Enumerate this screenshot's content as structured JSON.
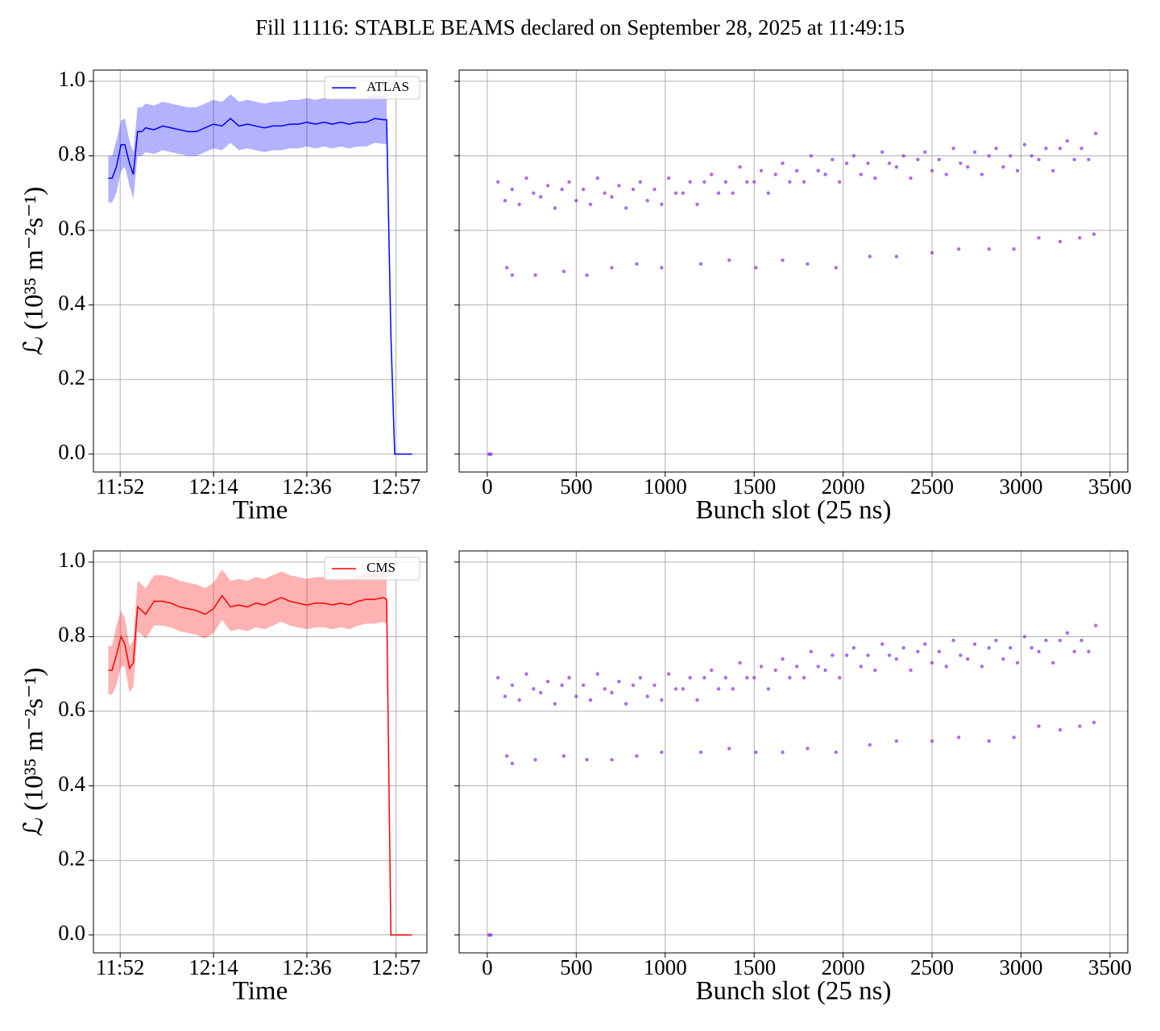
{
  "title": "Fill 11116: STABLE BEAMS declared on September 28, 2025 at 11:49:15",
  "chart_data": [
    {
      "type": "line",
      "xlabel": "Time",
      "ylabel": "ℒ (10³⁵ m⁻²s⁻¹)",
      "legend": "upper right",
      "grid": true,
      "xlim": [
        705.7,
        784.3
      ],
      "ylim": [
        -0.048,
        1.03
      ],
      "xticks": [
        {
          "value": 712,
          "label": "11:52"
        },
        {
          "value": 734,
          "label": "12:14"
        },
        {
          "value": 756,
          "label": "12:36"
        },
        {
          "value": 777,
          "label": "12:57"
        }
      ],
      "yticks": [
        {
          "value": 0,
          "label": "0.0"
        },
        0.2,
        0.4,
        0.6,
        0.8,
        {
          "value": 1,
          "label": "1.0"
        }
      ],
      "x": [
        709.2,
        710.1,
        711.1,
        712.2,
        713.1,
        714.2,
        715.1,
        716.1,
        717.1,
        718,
        720,
        722,
        724,
        726,
        728,
        730,
        732,
        734,
        736,
        738,
        740,
        742,
        744,
        746,
        748,
        750,
        752,
        754,
        756,
        758,
        760,
        762,
        764,
        766,
        768,
        770,
        772,
        774,
        774.8,
        775.8,
        776.7,
        778.7,
        780.8
      ],
      "series": [
        {
          "name": "ATLAS",
          "color": "#0000ff",
          "values": [
            0.74,
            0.74,
            0.77,
            0.83,
            0.83,
            0.78,
            0.75,
            0.865,
            0.865,
            0.875,
            0.87,
            0.88,
            0.875,
            0.87,
            0.865,
            0.865,
            0.875,
            0.885,
            0.88,
            0.9,
            0.88,
            0.885,
            0.88,
            0.875,
            0.88,
            0.88,
            0.885,
            0.885,
            0.89,
            0.885,
            0.89,
            0.885,
            0.89,
            0.885,
            0.89,
            0.89,
            0.9,
            0.897,
            0.897,
            0.32,
            0,
            0,
            0
          ],
          "band_lower": [
            0.675,
            0.675,
            0.7,
            0.76,
            0.77,
            0.72,
            0.685,
            0.8,
            0.8,
            0.81,
            0.805,
            0.815,
            0.81,
            0.805,
            0.8,
            0.8,
            0.81,
            0.82,
            0.815,
            0.835,
            0.815,
            0.82,
            0.815,
            0.81,
            0.815,
            0.815,
            0.82,
            0.82,
            0.825,
            0.82,
            0.825,
            0.82,
            0.825,
            0.82,
            0.825,
            0.825,
            0.835,
            0.832,
            0.832,
            null,
            null,
            null,
            null
          ],
          "band_upper": [
            0.8,
            0.8,
            0.84,
            0.895,
            0.9,
            0.84,
            0.81,
            0.93,
            0.93,
            0.94,
            0.935,
            0.945,
            0.94,
            0.935,
            0.93,
            0.93,
            0.94,
            0.95,
            0.945,
            0.965,
            0.945,
            0.95,
            0.945,
            0.94,
            0.945,
            0.945,
            0.95,
            0.95,
            0.955,
            0.95,
            0.955,
            0.95,
            0.955,
            0.95,
            0.955,
            0.955,
            0.965,
            0.962,
            0.962,
            null,
            null,
            null,
            null
          ]
        }
      ]
    },
    {
      "type": "scatter",
      "xlabel": "Bunch slot (25 ns)",
      "color": "#8a2be2",
      "grid": true,
      "show_ytick_labels": false,
      "xlim": [
        -158,
        3600
      ],
      "ylim": [
        -0.048,
        1.03
      ],
      "xticks": [
        0,
        500,
        1000,
        1500,
        2000,
        2500,
        3000,
        3500
      ],
      "yticks": [
        0,
        0.2,
        0.4,
        0.6,
        0.8,
        1
      ],
      "x": [
        60,
        100,
        140,
        180,
        220,
        260,
        300,
        340,
        380,
        420,
        460,
        500,
        540,
        580,
        620,
        660,
        700,
        740,
        780,
        820,
        860,
        900,
        940,
        980,
        1020,
        1060,
        1100,
        1140,
        1180,
        1220,
        1260,
        1300,
        1340,
        1380,
        1420,
        1460,
        1500,
        1540,
        1580,
        1620,
        1660,
        1700,
        1740,
        1780,
        1820,
        1860,
        1900,
        1940,
        1980,
        2020,
        2060,
        2100,
        2140,
        2180,
        2220,
        2260,
        2300,
        2340,
        2380,
        2420,
        2460,
        2500,
        2540,
        2580,
        2620,
        2660,
        2700,
        2740,
        2780,
        2820,
        2860,
        2900,
        2940,
        2980,
        3020,
        3060,
        3100,
        3140,
        3180,
        3220,
        3260,
        3300,
        3340,
        3380,
        3420,
        110,
        140,
        270,
        430,
        560,
        700,
        840,
        980,
        1200,
        1360,
        1510,
        1660,
        1800,
        1960,
        2150,
        2300,
        2500,
        2650,
        2820,
        2960,
        3100,
        3220,
        3330,
        3410,
        10,
        20
      ],
      "y": [
        0.73,
        0.68,
        0.71,
        0.67,
        0.74,
        0.7,
        0.69,
        0.72,
        0.66,
        0.71,
        0.73,
        0.68,
        0.71,
        0.67,
        0.74,
        0.7,
        0.69,
        0.72,
        0.66,
        0.71,
        0.73,
        0.68,
        0.71,
        0.67,
        0.74,
        0.7,
        0.7,
        0.73,
        0.67,
        0.73,
        0.75,
        0.7,
        0.73,
        0.7,
        0.77,
        0.73,
        0.73,
        0.76,
        0.7,
        0.75,
        0.78,
        0.73,
        0.76,
        0.73,
        0.8,
        0.76,
        0.75,
        0.79,
        0.73,
        0.78,
        0.8,
        0.75,
        0.78,
        0.74,
        0.81,
        0.78,
        0.77,
        0.8,
        0.74,
        0.79,
        0.81,
        0.76,
        0.79,
        0.75,
        0.82,
        0.78,
        0.77,
        0.81,
        0.75,
        0.8,
        0.82,
        0.77,
        0.8,
        0.76,
        0.83,
        0.8,
        0.79,
        0.82,
        0.76,
        0.82,
        0.84,
        0.79,
        0.82,
        0.79,
        0.86,
        0.5,
        0.48,
        0.48,
        0.49,
        0.48,
        0.5,
        0.51,
        0.5,
        0.51,
        0.52,
        0.5,
        0.52,
        0.51,
        0.5,
        0.53,
        0.53,
        0.54,
        0.55,
        0.55,
        0.55,
        0.58,
        0.57,
        0.58,
        0.59,
        0,
        0
      ]
    },
    {
      "type": "line",
      "xlabel": "Time",
      "ylabel": "ℒ (10³⁵ m⁻²s⁻¹)",
      "legend": "upper right",
      "grid": true,
      "xlim": [
        705.7,
        784.3
      ],
      "ylim": [
        -0.048,
        1.03
      ],
      "xticks": [
        {
          "value": 712,
          "label": "11:52"
        },
        {
          "value": 734,
          "label": "12:14"
        },
        {
          "value": 756,
          "label": "12:36"
        },
        {
          "value": 777,
          "label": "12:57"
        }
      ],
      "yticks": [
        {
          "value": 0,
          "label": "0.0"
        },
        0.2,
        0.4,
        0.6,
        0.8,
        {
          "value": 1,
          "label": "1.0"
        }
      ],
      "x": [
        709.2,
        710.1,
        711.1,
        712.2,
        713.1,
        714.2,
        715.1,
        716.1,
        717.1,
        718,
        720,
        722,
        724,
        726,
        728,
        730,
        732,
        734,
        736,
        738,
        740,
        742,
        744,
        746,
        748,
        750,
        752,
        754,
        756,
        758,
        760,
        762,
        764,
        766,
        768,
        770,
        772,
        774,
        774.8,
        775.8,
        776.7,
        778.7,
        780.8
      ],
      "series": [
        {
          "name": "CMS",
          "color": "#ff0000",
          "values": [
            0.71,
            0.71,
            0.75,
            0.8,
            0.78,
            0.715,
            0.73,
            0.88,
            0.87,
            0.86,
            0.895,
            0.895,
            0.89,
            0.88,
            0.875,
            0.87,
            0.86,
            0.875,
            0.91,
            0.88,
            0.885,
            0.88,
            0.89,
            0.885,
            0.895,
            0.905,
            0.895,
            0.89,
            0.885,
            0.89,
            0.89,
            0.885,
            0.89,
            0.885,
            0.895,
            0.9,
            0.9,
            0.905,
            0.9,
            0,
            0,
            0,
            0
          ],
          "band_lower": [
            0.645,
            0.645,
            0.67,
            0.72,
            0.72,
            0.65,
            0.665,
            0.815,
            0.805,
            0.795,
            0.83,
            0.83,
            0.825,
            0.815,
            0.81,
            0.805,
            0.795,
            0.81,
            0.845,
            0.815,
            0.82,
            0.815,
            0.825,
            0.82,
            0.83,
            0.84,
            0.83,
            0.825,
            0.82,
            0.825,
            0.825,
            0.82,
            0.825,
            0.82,
            0.83,
            0.835,
            0.835,
            0.84,
            0.835,
            null,
            null,
            null,
            null
          ],
          "band_upper": [
            0.775,
            0.775,
            0.83,
            0.87,
            0.85,
            0.775,
            0.79,
            0.95,
            0.94,
            0.93,
            0.965,
            0.965,
            0.96,
            0.95,
            0.945,
            0.94,
            0.93,
            0.945,
            0.98,
            0.95,
            0.955,
            0.95,
            0.96,
            0.955,
            0.965,
            0.975,
            0.965,
            0.96,
            0.955,
            0.96,
            0.96,
            0.955,
            0.96,
            0.955,
            0.965,
            0.97,
            0.97,
            0.975,
            0.97,
            null,
            null,
            null,
            null
          ]
        }
      ]
    },
    {
      "type": "scatter",
      "xlabel": "Bunch slot (25 ns)",
      "color": "#8a2be2",
      "grid": true,
      "show_ytick_labels": false,
      "xlim": [
        -158,
        3600
      ],
      "ylim": [
        -0.048,
        1.03
      ],
      "xticks": [
        0,
        500,
        1000,
        1500,
        2000,
        2500,
        3000,
        3500
      ],
      "yticks": [
        0,
        0.2,
        0.4,
        0.6,
        0.8,
        1
      ],
      "x": [
        60,
        100,
        140,
        180,
        220,
        260,
        300,
        340,
        380,
        420,
        460,
        500,
        540,
        580,
        620,
        660,
        700,
        740,
        780,
        820,
        860,
        900,
        940,
        980,
        1020,
        1060,
        1100,
        1140,
        1180,
        1220,
        1260,
        1300,
        1340,
        1380,
        1420,
        1460,
        1500,
        1540,
        1580,
        1620,
        1660,
        1700,
        1740,
        1780,
        1820,
        1860,
        1900,
        1940,
        1980,
        2020,
        2060,
        2100,
        2140,
        2180,
        2220,
        2260,
        2300,
        2340,
        2380,
        2420,
        2460,
        2500,
        2540,
        2580,
        2620,
        2660,
        2700,
        2740,
        2780,
        2820,
        2860,
        2900,
        2940,
        2980,
        3020,
        3060,
        3100,
        3140,
        3180,
        3220,
        3260,
        3300,
        3340,
        3380,
        3420,
        110,
        140,
        270,
        430,
        560,
        700,
        840,
        980,
        1200,
        1360,
        1510,
        1660,
        1800,
        1960,
        2150,
        2300,
        2500,
        2650,
        2820,
        2960,
        3100,
        3220,
        3330,
        3410,
        10,
        20
      ],
      "y": [
        0.69,
        0.64,
        0.67,
        0.63,
        0.7,
        0.66,
        0.65,
        0.68,
        0.62,
        0.67,
        0.69,
        0.64,
        0.67,
        0.63,
        0.7,
        0.66,
        0.65,
        0.68,
        0.62,
        0.67,
        0.69,
        0.64,
        0.67,
        0.63,
        0.7,
        0.66,
        0.66,
        0.69,
        0.63,
        0.69,
        0.71,
        0.66,
        0.69,
        0.66,
        0.73,
        0.69,
        0.69,
        0.72,
        0.66,
        0.71,
        0.74,
        0.69,
        0.72,
        0.69,
        0.76,
        0.72,
        0.71,
        0.75,
        0.69,
        0.75,
        0.77,
        0.72,
        0.75,
        0.71,
        0.78,
        0.75,
        0.74,
        0.77,
        0.71,
        0.76,
        0.78,
        0.73,
        0.76,
        0.72,
        0.79,
        0.75,
        0.74,
        0.78,
        0.72,
        0.77,
        0.79,
        0.74,
        0.77,
        0.73,
        0.8,
        0.77,
        0.76,
        0.79,
        0.73,
        0.79,
        0.81,
        0.76,
        0.79,
        0.76,
        0.83,
        0.48,
        0.46,
        0.47,
        0.48,
        0.47,
        0.47,
        0.48,
        0.49,
        0.49,
        0.5,
        0.49,
        0.49,
        0.5,
        0.49,
        0.51,
        0.52,
        0.52,
        0.53,
        0.52,
        0.53,
        0.56,
        0.55,
        0.56,
        0.57,
        0,
        0
      ]
    }
  ]
}
